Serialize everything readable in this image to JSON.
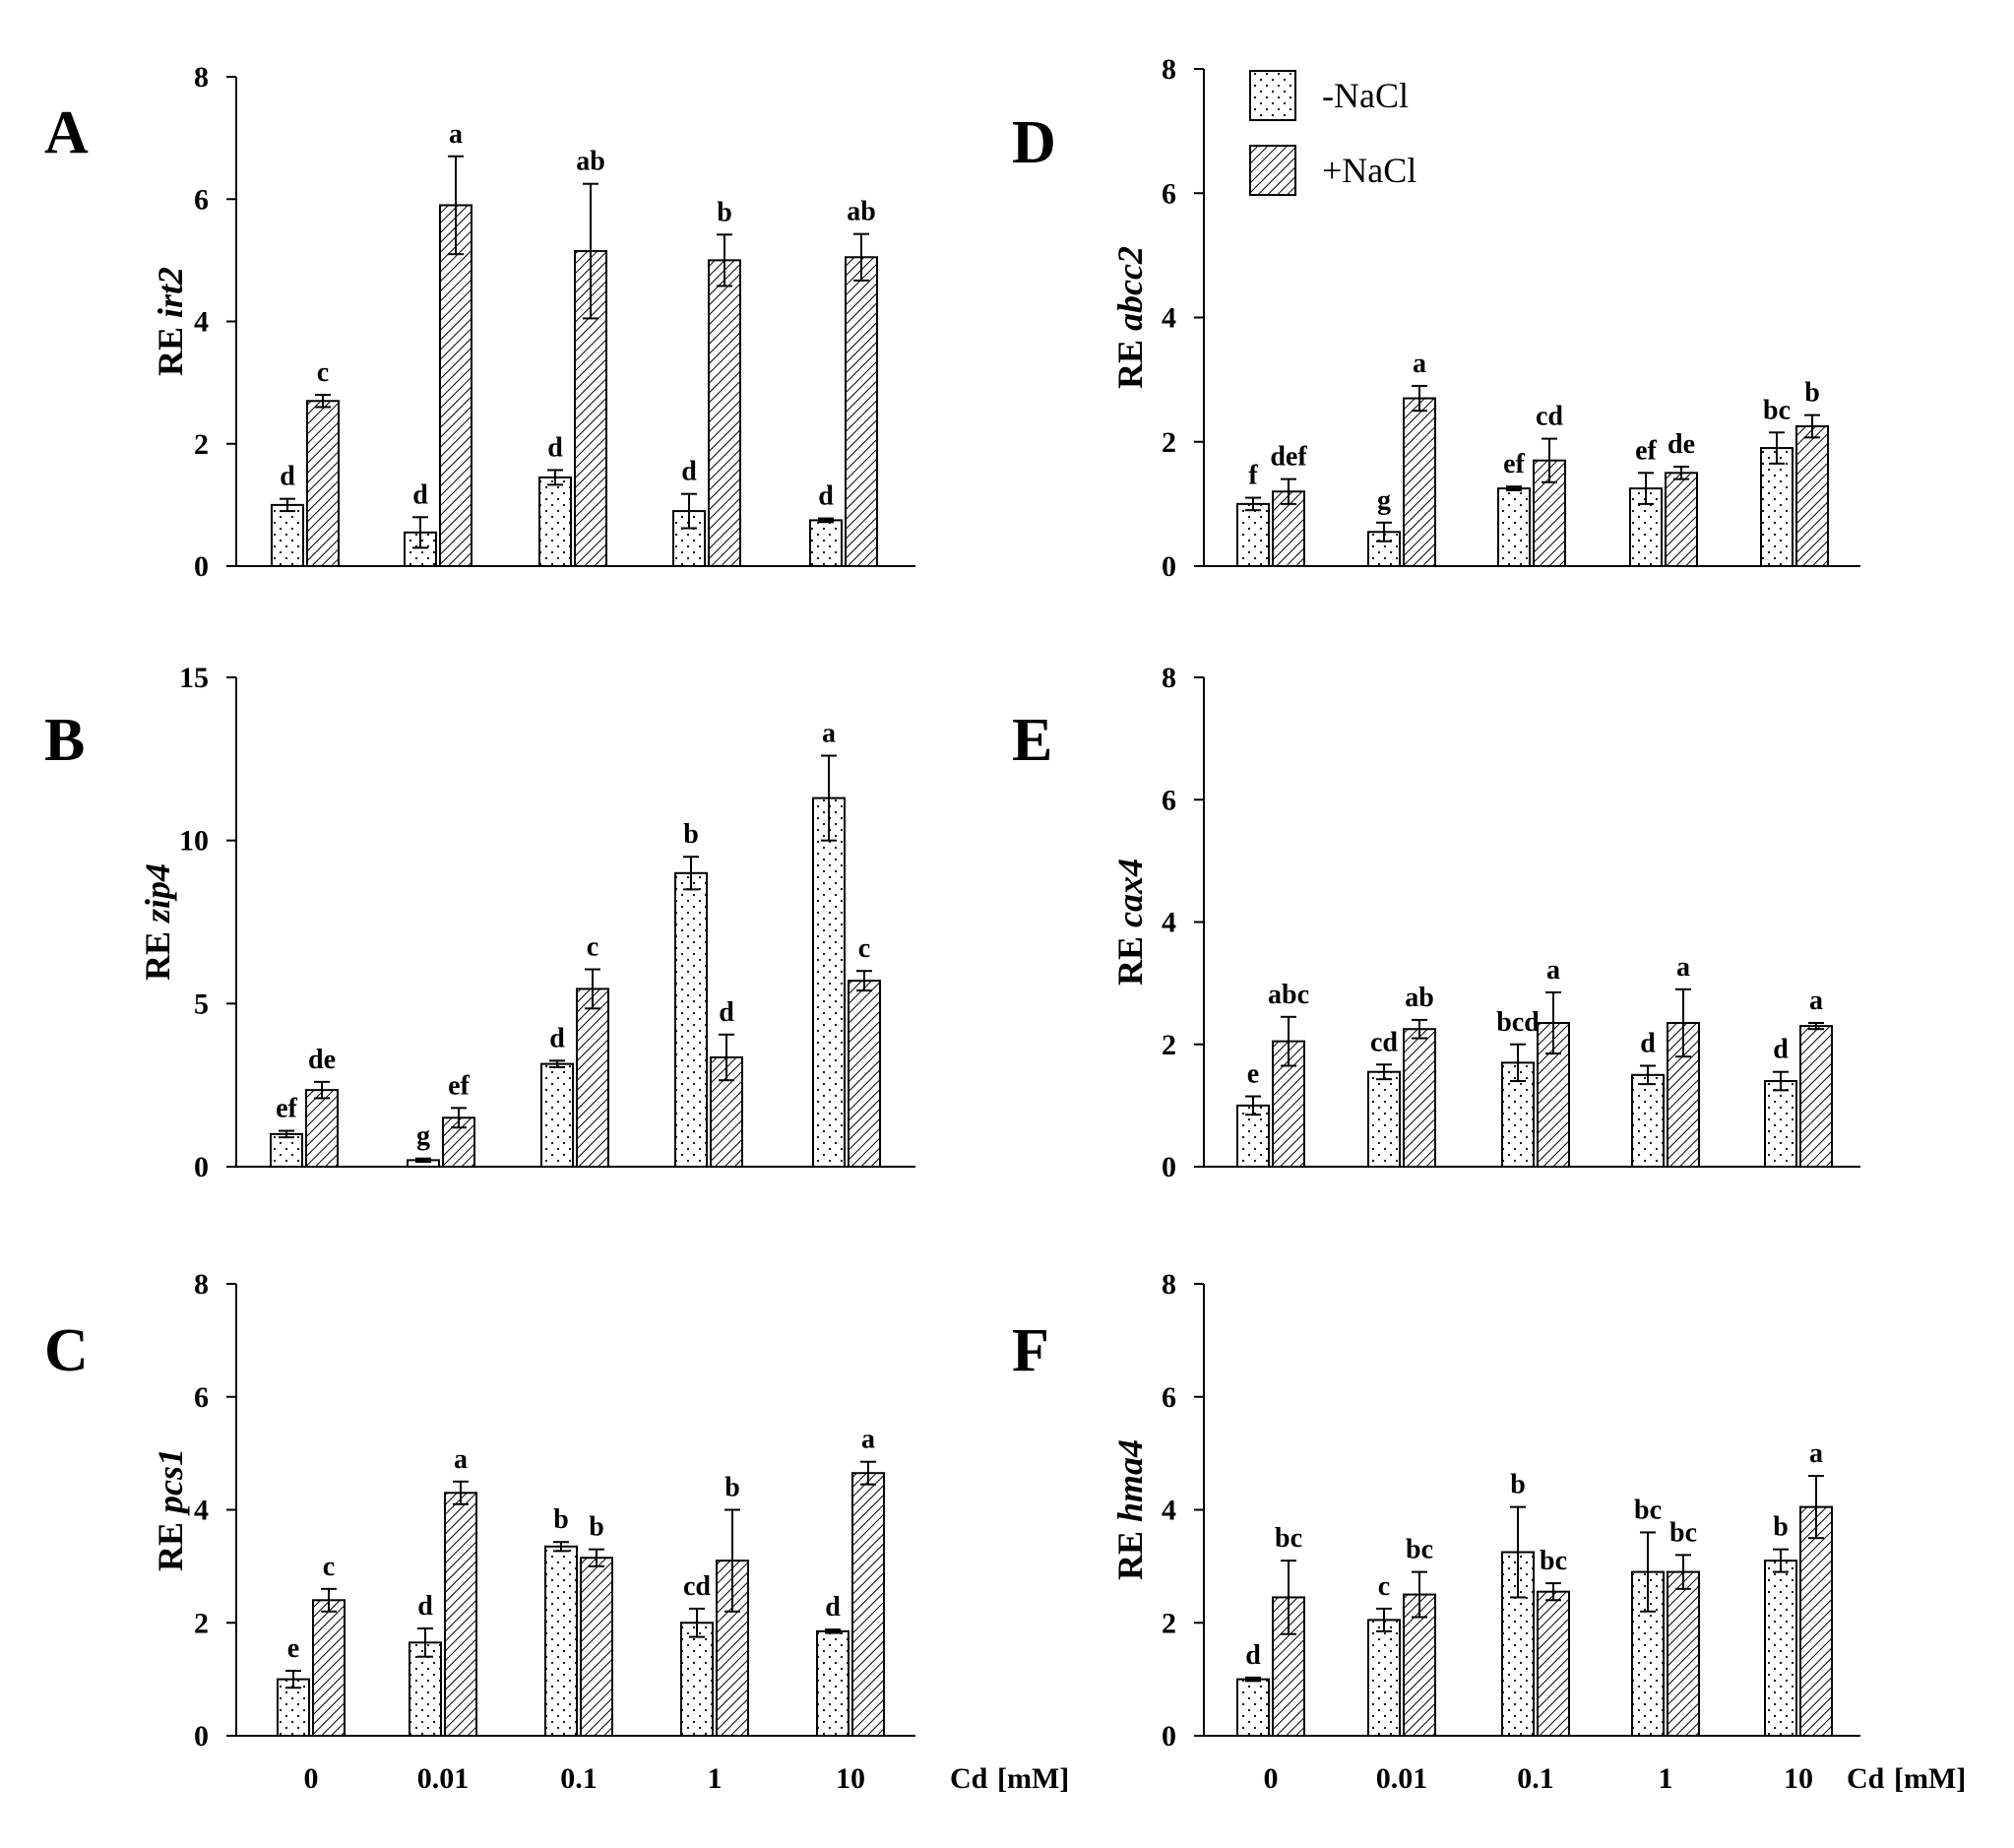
{
  "legend": {
    "minus_nacl": "-NaCl",
    "plus_nacl": "+NaCl"
  },
  "x_unit_label": "Cd",
  "x_unit_suffix": "[mM]",
  "chart_data": [
    {
      "panel": "A",
      "type": "bar",
      "ylabel_prefix": "RE",
      "gene": "irt2",
      "categories": [
        "0",
        "0.01",
        "0.1",
        "1",
        "10"
      ],
      "ylim": [
        0,
        8
      ],
      "yticks": [
        0,
        2,
        4,
        6,
        8
      ],
      "series": [
        {
          "name": "-NaCl",
          "values": [
            1.0,
            0.55,
            1.45,
            0.9,
            0.75
          ],
          "errors": [
            0.1,
            0.25,
            0.12,
            0.28,
            0.03
          ],
          "labels": [
            "d",
            "d",
            "d",
            "d",
            "d"
          ]
        },
        {
          "name": "+NaCl",
          "values": [
            2.7,
            5.9,
            5.15,
            5.0,
            5.05
          ],
          "errors": [
            0.1,
            0.8,
            1.1,
            0.42,
            0.38
          ],
          "labels": [
            "c",
            "a",
            "ab",
            "b",
            "ab"
          ]
        }
      ]
    },
    {
      "panel": "B",
      "type": "bar",
      "ylabel_prefix": "RE",
      "gene": "zip4",
      "categories": [
        "0",
        "0.01",
        "0.1",
        "1",
        "10"
      ],
      "ylim": [
        0,
        15
      ],
      "yticks": [
        0,
        5,
        10,
        15
      ],
      "series": [
        {
          "name": "-NaCl",
          "values": [
            1.0,
            0.2,
            3.15,
            9.0,
            11.3
          ],
          "errors": [
            0.1,
            0.05,
            0.1,
            0.5,
            1.3
          ],
          "labels": [
            "ef",
            "g",
            "d",
            "b",
            "a"
          ]
        },
        {
          "name": "+NaCl",
          "values": [
            2.35,
            1.5,
            5.45,
            3.35,
            5.7
          ],
          "errors": [
            0.25,
            0.3,
            0.6,
            0.7,
            0.3
          ],
          "labels": [
            "de",
            "ef",
            "c",
            "d",
            "c"
          ]
        }
      ]
    },
    {
      "panel": "C",
      "type": "bar",
      "ylabel_prefix": "RE",
      "gene": "pcs1",
      "categories": [
        "0",
        "0.01",
        "0.1",
        "1",
        "10"
      ],
      "ylim": [
        0,
        8
      ],
      "yticks": [
        0,
        2,
        4,
        6,
        8
      ],
      "series": [
        {
          "name": "-NaCl",
          "values": [
            1.0,
            1.65,
            3.35,
            2.0,
            1.85
          ],
          "errors": [
            0.15,
            0.25,
            0.08,
            0.25,
            0.03
          ],
          "labels": [
            "e",
            "d",
            "b",
            "cd",
            "d"
          ]
        },
        {
          "name": "+NaCl",
          "values": [
            2.4,
            4.3,
            3.15,
            3.1,
            4.65
          ],
          "errors": [
            0.2,
            0.2,
            0.15,
            0.9,
            0.2
          ],
          "labels": [
            "c",
            "a",
            "b",
            "b",
            "a"
          ]
        }
      ]
    },
    {
      "panel": "D",
      "type": "bar",
      "ylabel_prefix": "RE",
      "gene": "abcc2",
      "categories": [
        "0",
        "0.01",
        "0.1",
        "1",
        "10"
      ],
      "ylim": [
        0,
        8
      ],
      "yticks": [
        0,
        2,
        4,
        6,
        8
      ],
      "series": [
        {
          "name": "-NaCl",
          "values": [
            1.0,
            0.55,
            1.25,
            1.25,
            1.9
          ],
          "errors": [
            0.1,
            0.15,
            0.03,
            0.25,
            0.25
          ],
          "labels": [
            "f",
            "g",
            "ef",
            "ef",
            "bc"
          ]
        },
        {
          "name": "+NaCl",
          "values": [
            1.2,
            2.7,
            1.7,
            1.5,
            2.25
          ],
          "errors": [
            0.2,
            0.2,
            0.35,
            0.1,
            0.18
          ],
          "labels": [
            "def",
            "a",
            "cd",
            "de",
            "b"
          ]
        }
      ]
    },
    {
      "panel": "E",
      "type": "bar",
      "ylabel_prefix": "RE",
      "gene": "cax4",
      "categories": [
        "0",
        "0.01",
        "0.1",
        "1",
        "10"
      ],
      "ylim": [
        0,
        8
      ],
      "yticks": [
        0,
        2,
        4,
        6,
        8
      ],
      "series": [
        {
          "name": "-NaCl",
          "values": [
            1.0,
            1.55,
            1.7,
            1.5,
            1.4
          ],
          "errors": [
            0.15,
            0.12,
            0.3,
            0.15,
            0.15
          ],
          "labels": [
            "e",
            "cd",
            "bcd",
            "d",
            "d"
          ]
        },
        {
          "name": "+NaCl",
          "values": [
            2.05,
            2.25,
            2.35,
            2.35,
            2.3
          ],
          "errors": [
            0.4,
            0.15,
            0.5,
            0.55,
            0.05
          ],
          "labels": [
            "abc",
            "ab",
            "a",
            "a",
            "a"
          ]
        }
      ]
    },
    {
      "panel": "F",
      "type": "bar",
      "ylabel_prefix": "RE",
      "gene": "hma4",
      "categories": [
        "0",
        "0.01",
        "0.1",
        "1",
        "10"
      ],
      "ylim": [
        0,
        8
      ],
      "yticks": [
        0,
        2,
        4,
        6,
        8
      ],
      "series": [
        {
          "name": "-NaCl",
          "values": [
            1.0,
            2.05,
            3.25,
            2.9,
            3.1
          ],
          "errors": [
            0.03,
            0.2,
            0.8,
            0.7,
            0.2
          ],
          "labels": [
            "d",
            "c",
            "b",
            "bc",
            "b"
          ]
        },
        {
          "name": "+NaCl",
          "values": [
            2.45,
            2.5,
            2.55,
            2.9,
            4.05
          ],
          "errors": [
            0.65,
            0.4,
            0.15,
            0.3,
            0.55
          ],
          "labels": [
            "bc",
            "bc",
            "bc",
            "bc",
            "a"
          ]
        }
      ]
    }
  ]
}
